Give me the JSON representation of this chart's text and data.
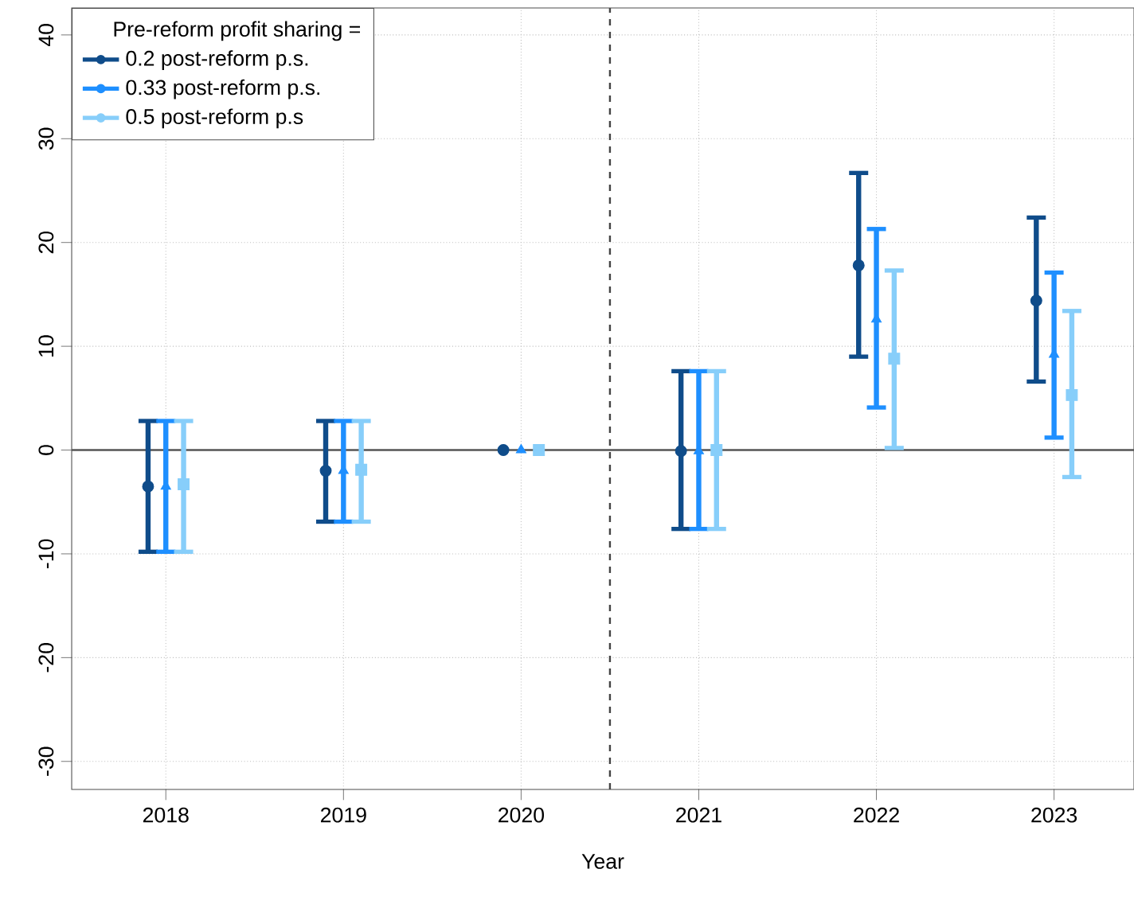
{
  "chart_data": {
    "type": "scatter",
    "legend_title": "Pre-reform profit sharing =",
    "xlabel": "Year",
    "series": [
      {
        "name": "0.2 post-reform p.s.",
        "color": "#0f4c8a",
        "marker": "circle",
        "x": [
          2017.9,
          2018.9,
          2019.9,
          2020.9,
          2021.9,
          2022.9
        ],
        "values": [
          -3.5,
          -2.0,
          0,
          -0.1,
          17.8,
          14.4
        ],
        "errors": [
          [
            -9.8,
            2.8
          ],
          [
            -6.9,
            2.8
          ],
          null,
          [
            -7.6,
            7.6
          ],
          [
            9.0,
            26.7
          ],
          [
            6.6,
            22.4
          ]
        ]
      },
      {
        "name": "0.33 post-reform p.s.",
        "color": "#1e8fff",
        "marker": "triangle",
        "x": [
          2018,
          2019,
          2020,
          2021,
          2022,
          2023
        ],
        "values": [
          -3.5,
          -2.0,
          0,
          -0.1,
          12.6,
          9.2
        ],
        "errors": [
          [
            -9.8,
            2.8
          ],
          [
            -6.9,
            2.8
          ],
          null,
          [
            -7.6,
            7.6
          ],
          [
            4.1,
            21.3
          ],
          [
            1.2,
            17.1
          ]
        ]
      },
      {
        "name": "0.5 post-reform p.s",
        "color": "#87cefa",
        "marker": "square",
        "x": [
          2018.1,
          2019.1,
          2020.1,
          2021.1,
          2022.1,
          2023.1
        ],
        "values": [
          -3.3,
          -1.9,
          0,
          0,
          8.8,
          5.3
        ],
        "errors": [
          [
            -9.8,
            2.8
          ],
          [
            -6.9,
            2.8
          ],
          null,
          [
            -7.6,
            7.6
          ],
          [
            0.2,
            17.3
          ],
          [
            -2.6,
            13.4
          ]
        ]
      }
    ],
    "xlim": [
      2017.47,
      2023.45
    ],
    "ylim": [
      -32.7,
      42.6
    ],
    "xticks": [
      2018,
      2019,
      2020,
      2021,
      2022,
      2023
    ],
    "yticks": [
      -30,
      -20,
      -10,
      0,
      10,
      20,
      30,
      40
    ],
    "ref_lines": [
      {
        "axis": "y",
        "value": 0,
        "color": "#555555",
        "line_style": "solid"
      },
      {
        "axis": "x",
        "value": 2020.5,
        "color": "#444444",
        "line_style": "dashed"
      }
    ],
    "grid": true,
    "legend": "top left"
  }
}
